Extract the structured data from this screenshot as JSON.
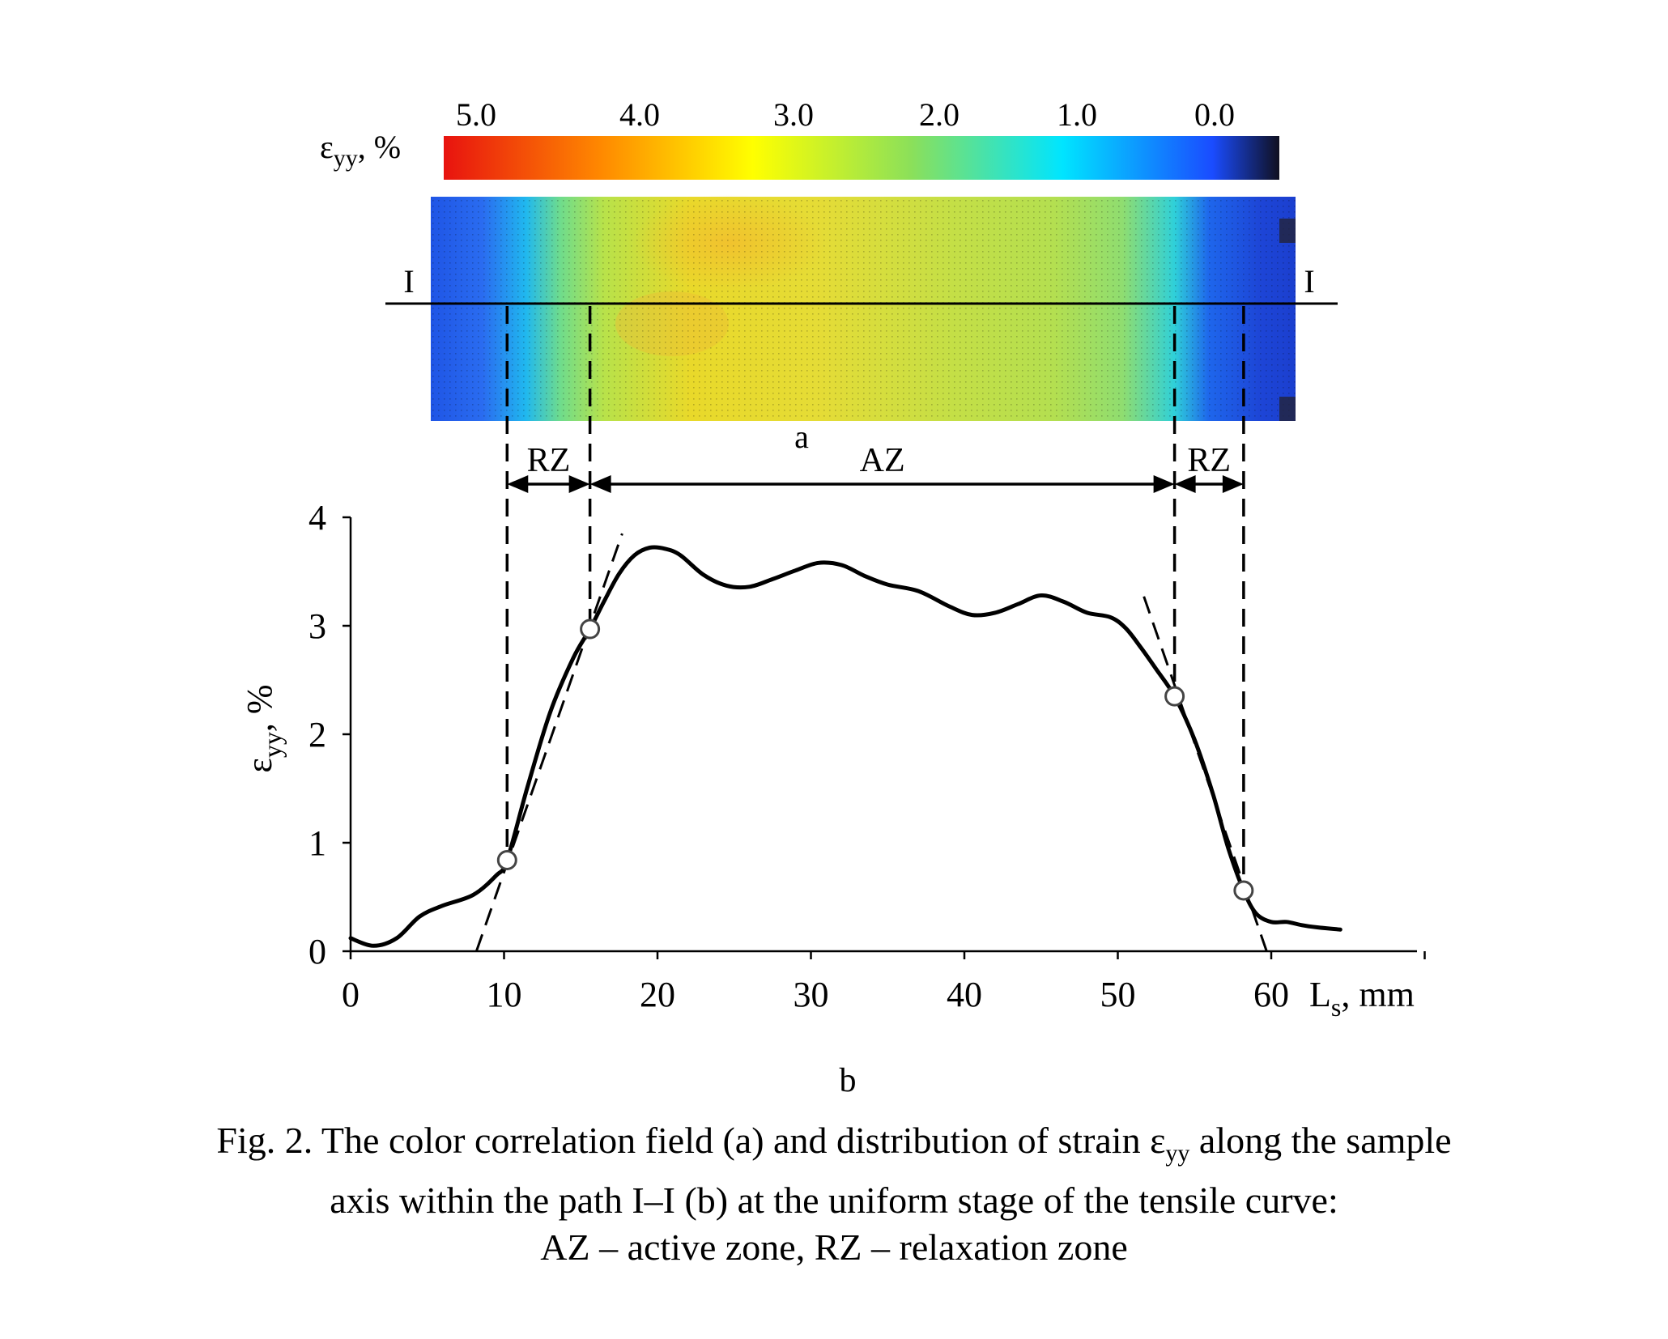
{
  "colorbar": {
    "label_base": "ε",
    "label_sub": "yy",
    "label_unit": ", %",
    "ticks": [
      "5.0",
      "4.0",
      "3.0",
      "2.0",
      "1.0",
      "0.0"
    ],
    "colors": [
      "#e8130f",
      "#ff8a00",
      "#ffff00",
      "#8be05a",
      "#00e5ff",
      "#1a4cff",
      "#101020"
    ]
  },
  "field": {
    "section_left": "I",
    "section_right": "I",
    "panel_label": "a"
  },
  "zones": {
    "rz_left": "RZ",
    "az": "AZ",
    "rz_right": "RZ"
  },
  "chart_data": {
    "type": "line",
    "panel_label": "b",
    "xlabel_base": "L",
    "xlabel_sub": "s",
    "xlabel_unit": ", mm",
    "ylabel_base": "ε",
    "ylabel_sub": "yy",
    "ylabel_unit": ", %",
    "xlim": [
      0,
      70
    ],
    "ylim": [
      0,
      4
    ],
    "xticks": [
      0,
      10,
      20,
      30,
      40,
      50,
      60
    ],
    "yticks": [
      0,
      1,
      2,
      3,
      4
    ],
    "grid": false,
    "series": [
      {
        "x": [
          0,
          1.5,
          3,
          4.5,
          6,
          8,
          9.5,
          10.2,
          11.5,
          13,
          14.5,
          15.6,
          16.5,
          17.5,
          18.5,
          19.5,
          20.5,
          21.5,
          23,
          24.5,
          26,
          27.5,
          29,
          30.5,
          32,
          33.5,
          35,
          37,
          39,
          40.5,
          42,
          43.5,
          45,
          46.5,
          48,
          49.5,
          50.5,
          51.5,
          52.5,
          53.7,
          55,
          56.2,
          57.2,
          58.2,
          59,
          60,
          61,
          62,
          63,
          64.5
        ],
        "y": [
          0.12,
          0.05,
          0.12,
          0.32,
          0.42,
          0.52,
          0.7,
          0.84,
          1.5,
          2.2,
          2.7,
          2.97,
          3.22,
          3.48,
          3.65,
          3.72,
          3.71,
          3.65,
          3.47,
          3.37,
          3.36,
          3.43,
          3.51,
          3.58,
          3.56,
          3.46,
          3.38,
          3.32,
          3.18,
          3.1,
          3.12,
          3.2,
          3.28,
          3.22,
          3.12,
          3.08,
          2.98,
          2.8,
          2.6,
          2.35,
          1.95,
          1.45,
          0.95,
          0.56,
          0.35,
          0.27,
          0.27,
          0.24,
          0.22,
          0.2
        ]
      }
    ],
    "markers": [
      {
        "x": 10.2,
        "y": 0.84
      },
      {
        "x": 15.6,
        "y": 2.97
      },
      {
        "x": 53.7,
        "y": 2.35
      },
      {
        "x": 58.2,
        "y": 0.56
      }
    ],
    "tangents": [
      {
        "x1": 8.2,
        "y1": 0.0,
        "x2": 17.7,
        "y2": 3.85
      },
      {
        "x1": 51.7,
        "y1": 3.27,
        "x2": 59.7,
        "y2": 0.0
      }
    ],
    "zone_boundaries": [
      10.2,
      15.6,
      53.7,
      58.2
    ]
  },
  "caption": {
    "line1_a": "Fig. 2. The color correlation field (a) and distribution of strain ε",
    "line1_sub": "yy",
    "line1_b": " along the sample",
    "line2": "axis within the path I–I (b) at the uniform stage of the tensile curve:",
    "line3": "AZ – active zone, RZ – relaxation zone"
  }
}
